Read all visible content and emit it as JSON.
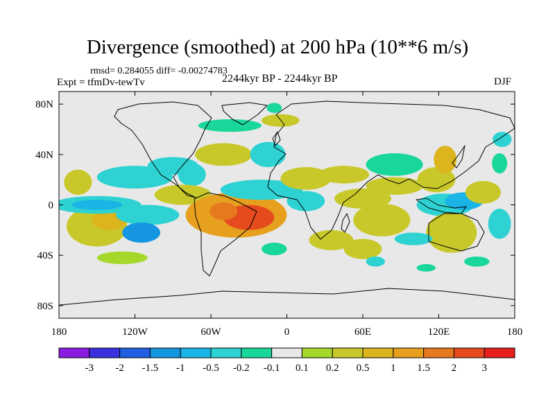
{
  "chart_data": {
    "type": "heatmap",
    "title": "Divergence (smoothed) at 200 hPa (10**6 m/s)",
    "stats_text": "rmsd= 0.284055 diff= -0.00274783",
    "left_label": "Expt = tfmDv-tewTv",
    "center_label": "2244kyr BP - 2244kyr BP",
    "right_label": "DJF",
    "x_range": [
      -180,
      180
    ],
    "y_range": [
      -90,
      90
    ],
    "x_ticks": [
      {
        "value": -180,
        "label": "180"
      },
      {
        "value": -120,
        "label": "120W"
      },
      {
        "value": -60,
        "label": "60W"
      },
      {
        "value": 0,
        "label": "0"
      },
      {
        "value": 60,
        "label": "60E"
      },
      {
        "value": 120,
        "label": "120E"
      },
      {
        "value": 180,
        "label": "180"
      }
    ],
    "y_ticks": [
      {
        "value": 80,
        "label": "80N"
      },
      {
        "value": 40,
        "label": "40N"
      },
      {
        "value": 0,
        "label": "0"
      },
      {
        "value": -40,
        "label": "40S"
      },
      {
        "value": -80,
        "label": "80S"
      }
    ],
    "colorbar": {
      "colors": [
        "#8a1be0",
        "#3b2fe0",
        "#1f5fe0",
        "#1496e0",
        "#1ab4e6",
        "#2ed2d2",
        "#19d79b",
        "#e8e8e8",
        "#a5d82a",
        "#c8c82a",
        "#dcb41e",
        "#e6a01e",
        "#e6781e",
        "#e64b1e",
        "#e61e1e"
      ],
      "levels": [
        "-3",
        "-2",
        "-1.5",
        "-1",
        "-0.5",
        "-0.2",
        "-0.1",
        "0.1",
        "0.2",
        "0.5",
        "1",
        "1.5",
        "2",
        "3"
      ]
    },
    "field_regions": [
      {
        "lon": -150,
        "lat": -17,
        "w": 48,
        "h": 16,
        "level": 9
      },
      {
        "lon": -140,
        "lat": -12,
        "w": 28,
        "h": 8,
        "level": 10
      },
      {
        "lon": -165,
        "lat": 18,
        "w": 22,
        "h": 10,
        "level": 9
      },
      {
        "lon": -150,
        "lat": 0,
        "w": 70,
        "h": 7,
        "level": 5
      },
      {
        "lon": -150,
        "lat": 0,
        "w": 40,
        "h": 4,
        "level": 4
      },
      {
        "lon": -120,
        "lat": 22,
        "w": 60,
        "h": 9,
        "level": 5
      },
      {
        "lon": -110,
        "lat": -8,
        "w": 50,
        "h": 8,
        "level": 5
      },
      {
        "lon": -115,
        "lat": -22,
        "w": 30,
        "h": 8,
        "level": 3
      },
      {
        "lon": -90,
        "lat": 31,
        "w": 40,
        "h": 7,
        "level": 5
      },
      {
        "lon": -75,
        "lat": 24,
        "w": 22,
        "h": 9,
        "level": 5
      },
      {
        "lon": -82,
        "lat": 8,
        "w": 45,
        "h": 8,
        "level": 9
      },
      {
        "lon": -40,
        "lat": -8,
        "w": 80,
        "h": 18,
        "level": 11
      },
      {
        "lon": -30,
        "lat": -10,
        "w": 40,
        "h": 10,
        "level": 13
      },
      {
        "lon": -50,
        "lat": -5,
        "w": 22,
        "h": 7,
        "level": 12
      },
      {
        "lon": -20,
        "lat": 12,
        "w": 65,
        "h": 8,
        "level": 5
      },
      {
        "lon": -50,
        "lat": 40,
        "w": 45,
        "h": 9,
        "level": 9
      },
      {
        "lon": -15,
        "lat": 40,
        "w": 28,
        "h": 10,
        "level": 5
      },
      {
        "lon": -45,
        "lat": 63,
        "w": 50,
        "h": 5,
        "level": 6
      },
      {
        "lon": -5,
        "lat": 67,
        "w": 30,
        "h": 5,
        "level": 9
      },
      {
        "lon": -10,
        "lat": 77,
        "w": 12,
        "h": 4,
        "level": 6
      },
      {
        "lon": 15,
        "lat": 21,
        "w": 40,
        "h": 9,
        "level": 9
      },
      {
        "lon": 45,
        "lat": 24,
        "w": 40,
        "h": 7,
        "level": 9
      },
      {
        "lon": 15,
        "lat": 3,
        "w": 30,
        "h": 8,
        "level": 5
      },
      {
        "lon": 60,
        "lat": 5,
        "w": 45,
        "h": 8,
        "level": 9
      },
      {
        "lon": 75,
        "lat": -12,
        "w": 45,
        "h": 13,
        "level": 9
      },
      {
        "lon": 35,
        "lat": -28,
        "w": 35,
        "h": 8,
        "level": 9
      },
      {
        "lon": 60,
        "lat": -35,
        "w": 30,
        "h": 8,
        "level": 9
      },
      {
        "lon": 85,
        "lat": 32,
        "w": 45,
        "h": 9,
        "level": 6
      },
      {
        "lon": 85,
        "lat": 15,
        "w": 45,
        "h": 7,
        "level": 9
      },
      {
        "lon": 118,
        "lat": 20,
        "w": 30,
        "h": 10,
        "level": 9
      },
      {
        "lon": 125,
        "lat": 36,
        "w": 18,
        "h": 11,
        "level": 10
      },
      {
        "lon": 125,
        "lat": 0,
        "w": 45,
        "h": 9,
        "level": 5
      },
      {
        "lon": 140,
        "lat": 3,
        "w": 30,
        "h": 7,
        "level": 4
      },
      {
        "lon": 130,
        "lat": -22,
        "w": 40,
        "h": 16,
        "level": 9
      },
      {
        "lon": 168,
        "lat": -15,
        "w": 18,
        "h": 12,
        "level": 5
      },
      {
        "lon": 155,
        "lat": 10,
        "w": 28,
        "h": 9,
        "level": 9
      },
      {
        "lon": 168,
        "lat": 33,
        "w": 12,
        "h": 8,
        "level": 6
      },
      {
        "lon": 170,
        "lat": 52,
        "w": 15,
        "h": 6,
        "level": 5
      },
      {
        "lon": 100,
        "lat": -27,
        "w": 30,
        "h": 5,
        "level": 5
      },
      {
        "lon": 70,
        "lat": -45,
        "w": 15,
        "h": 4,
        "level": 5
      },
      {
        "lon": 150,
        "lat": -45,
        "w": 20,
        "h": 4,
        "level": 6
      },
      {
        "lon": -130,
        "lat": -42,
        "w": 40,
        "h": 5,
        "level": 8
      },
      {
        "lon": -10,
        "lat": -35,
        "w": 20,
        "h": 5,
        "level": 6
      },
      {
        "lon": 110,
        "lat": -50,
        "w": 15,
        "h": 3,
        "level": 6
      }
    ]
  }
}
